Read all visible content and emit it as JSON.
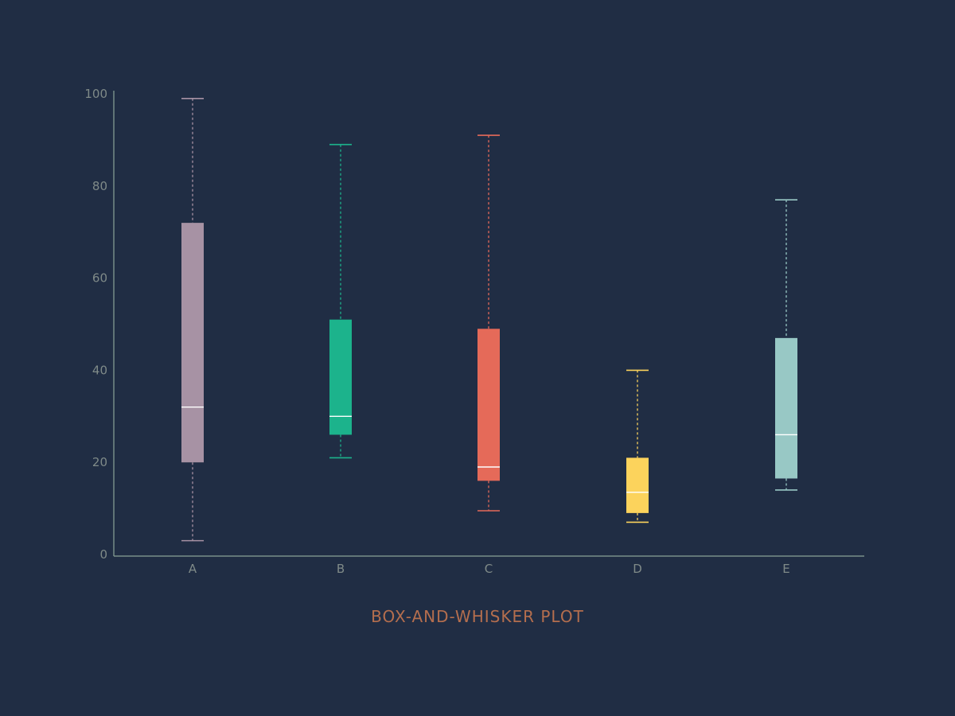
{
  "chart_data": {
    "type": "box",
    "title": "BOX-AND-WHISKER PLOT",
    "xlabel": "",
    "ylabel": "",
    "ylim": [
      0,
      100
    ],
    "y_ticks": [
      0,
      20,
      40,
      60,
      80,
      100
    ],
    "grid": false,
    "categories": [
      "A",
      "B",
      "C",
      "D",
      "E"
    ],
    "boxes": [
      {
        "category": "A",
        "min": 3,
        "q1": 20,
        "median": 32,
        "q3": 72,
        "max": 99,
        "color": "#a792a4"
      },
      {
        "category": "B",
        "min": 21,
        "q1": 26,
        "median": 30,
        "q3": 51,
        "max": 89,
        "color": "#1cb38c"
      },
      {
        "category": "C",
        "min": 9.5,
        "q1": 16,
        "median": 19,
        "q3": 49,
        "max": 91,
        "color": "#e56a59"
      },
      {
        "category": "D",
        "min": 7,
        "q1": 9,
        "median": 13.5,
        "q3": 21,
        "max": 40,
        "color": "#fcd35c"
      },
      {
        "category": "E",
        "min": 14,
        "q1": 16.5,
        "median": 26,
        "q3": 47,
        "max": 77,
        "color": "#98c8c5"
      }
    ],
    "colors": {
      "background": "#202d44",
      "axis": "#8aa398",
      "tick_text": "#7f8a88",
      "title": "#b46e4e",
      "median": "#ffffff"
    }
  }
}
